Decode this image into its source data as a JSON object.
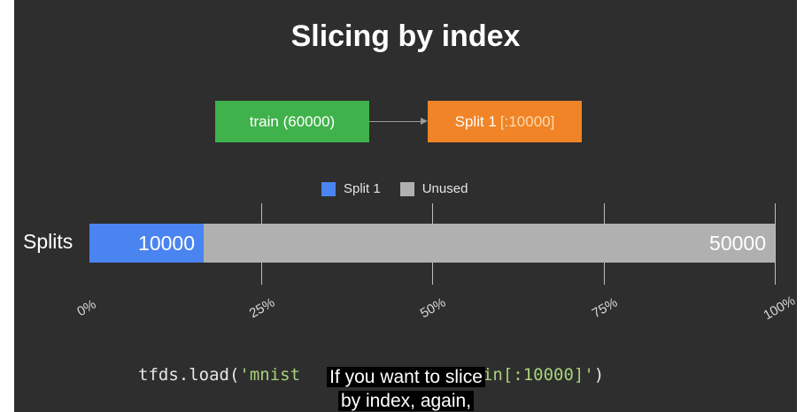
{
  "slide": {
    "title": "Slicing by index",
    "flow": {
      "source_label": "train (60000)",
      "target_label": "Split 1",
      "target_range": "[:10000]"
    },
    "legend": [
      {
        "label": "Split 1",
        "color": "#4a84f0"
      },
      {
        "label": "Unused",
        "color": "#b0b0b0"
      }
    ],
    "row_label": "Splits",
    "colors": {
      "used": "#4a84f0",
      "unused": "#b0b0b0",
      "source": "#40b24b",
      "target": "#f08426"
    }
  },
  "chart_data": {
    "type": "bar",
    "orientation": "horizontal",
    "stacked": true,
    "categories": [
      "Splits"
    ],
    "series": [
      {
        "name": "Split 1",
        "values": [
          10000
        ]
      },
      {
        "name": "Unused",
        "values": [
          50000
        ]
      }
    ],
    "xlim": [
      0,
      60000
    ],
    "tick_labels": [
      "0%",
      "25%",
      "50%",
      "75%",
      "100%"
    ],
    "legend_position": "top"
  },
  "code": {
    "prefix": "tfds.load(",
    "string_left": "'mnist",
    "string_right": "train[:10000]'",
    "suffix": ")"
  },
  "captions": {
    "line1": "If you want to slice",
    "line2": "by index, again,"
  }
}
